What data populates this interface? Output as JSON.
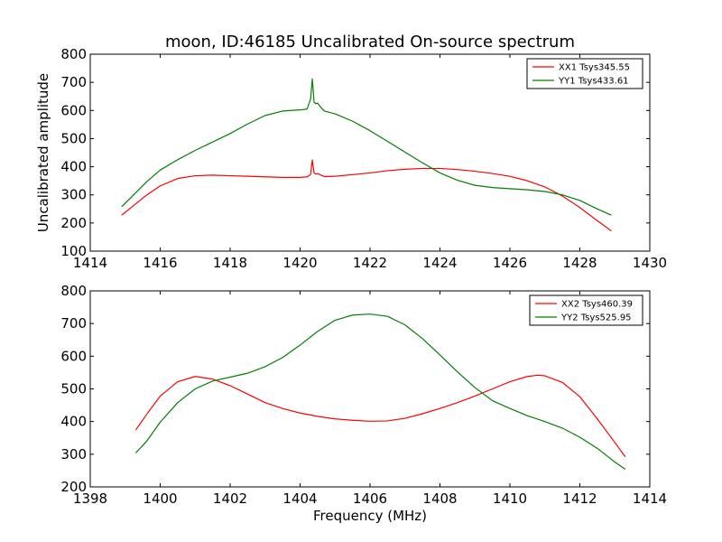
{
  "figure": {
    "title": "moon, ID:46185 Uncalibrated On-source spectrum",
    "ylabel": "Uncalibrated amplitude",
    "xlabel": "Frequency (MHz)"
  },
  "chart_data": [
    {
      "type": "line",
      "title": "moon, ID:46185 Uncalibrated On-source spectrum",
      "xlabel": "",
      "ylabel": "Uncalibrated amplitude",
      "xlim": [
        1414,
        1430
      ],
      "ylim": [
        100,
        800
      ],
      "xticks": [
        1414,
        1416,
        1418,
        1420,
        1422,
        1424,
        1426,
        1428,
        1430
      ],
      "yticks": [
        100,
        200,
        300,
        400,
        500,
        600,
        700,
        800
      ],
      "grid": false,
      "legend": "top-right",
      "series": [
        {
          "name": "XX1 Tsys345.55",
          "color": "#ff0000",
          "x": [
            1414.9,
            1415.2,
            1415.6,
            1416.0,
            1416.5,
            1417.0,
            1417.5,
            1418.0,
            1418.5,
            1419.0,
            1419.5,
            1420.0,
            1420.2,
            1420.3,
            1420.35,
            1420.4,
            1420.45,
            1420.5,
            1420.6,
            1420.7,
            1421.0,
            1421.5,
            1422.0,
            1422.5,
            1423.0,
            1423.5,
            1424.0,
            1424.5,
            1425.0,
            1425.5,
            1426.0,
            1426.5,
            1427.0,
            1427.5,
            1428.0,
            1428.5,
            1428.9
          ],
          "y": [
            228,
            258,
            298,
            332,
            358,
            368,
            370,
            368,
            366,
            364,
            362,
            362,
            364,
            372,
            424,
            378,
            374,
            376,
            370,
            365,
            366,
            372,
            378,
            386,
            391,
            394,
            394,
            390,
            384,
            376,
            366,
            350,
            328,
            296,
            255,
            208,
            172
          ]
        },
        {
          "name": "YY1 Tsys433.61",
          "color": "#008000",
          "x": [
            1414.9,
            1415.2,
            1415.6,
            1416.0,
            1416.5,
            1417.0,
            1417.5,
            1418.0,
            1418.5,
            1419.0,
            1419.5,
            1420.0,
            1420.2,
            1420.3,
            1420.35,
            1420.4,
            1420.45,
            1420.5,
            1420.6,
            1420.7,
            1421.0,
            1421.5,
            1422.0,
            1422.5,
            1423.0,
            1423.5,
            1424.0,
            1424.5,
            1425.0,
            1425.5,
            1426.0,
            1426.5,
            1427.0,
            1427.5,
            1428.0,
            1428.5,
            1428.9
          ],
          "y": [
            258,
            295,
            345,
            388,
            425,
            458,
            488,
            518,
            552,
            582,
            598,
            602,
            605,
            640,
            712,
            630,
            624,
            626,
            610,
            598,
            588,
            562,
            528,
            490,
            452,
            414,
            378,
            352,
            334,
            326,
            322,
            318,
            312,
            300,
            280,
            250,
            228
          ]
        }
      ]
    },
    {
      "type": "line",
      "title": "",
      "xlabel": "Frequency (MHz)",
      "ylabel": "",
      "xlim": [
        1398,
        1414
      ],
      "ylim": [
        200,
        800
      ],
      "xticks": [
        1398,
        1400,
        1402,
        1404,
        1406,
        1408,
        1410,
        1412,
        1414
      ],
      "yticks": [
        200,
        300,
        400,
        500,
        600,
        700,
        800
      ],
      "grid": false,
      "legend": "top-right",
      "series": [
        {
          "name": "XX2 Tsys460.39",
          "color": "#ff0000",
          "x": [
            1399.3,
            1399.6,
            1400.0,
            1400.5,
            1401.0,
            1401.5,
            1402.0,
            1402.5,
            1403.0,
            1403.5,
            1404.0,
            1404.5,
            1405.0,
            1405.5,
            1406.0,
            1406.5,
            1407.0,
            1407.5,
            1408.0,
            1408.5,
            1409.0,
            1409.5,
            1410.0,
            1410.5,
            1410.8,
            1411.0,
            1411.5,
            1412.0,
            1412.5,
            1413.0,
            1413.3
          ],
          "y": [
            374,
            420,
            478,
            522,
            538,
            530,
            510,
            484,
            458,
            440,
            426,
            416,
            408,
            404,
            401,
            402,
            410,
            424,
            440,
            458,
            478,
            500,
            522,
            538,
            542,
            540,
            520,
            476,
            408,
            336,
            292
          ]
        },
        {
          "name": "YY2 Tsys525.95",
          "color": "#008000",
          "x": [
            1399.3,
            1399.6,
            1400.0,
            1400.5,
            1401.0,
            1401.5,
            1402.0,
            1402.5,
            1403.0,
            1403.5,
            1404.0,
            1404.5,
            1405.0,
            1405.5,
            1406.0,
            1406.5,
            1407.0,
            1407.5,
            1408.0,
            1408.5,
            1409.0,
            1409.5,
            1410.0,
            1410.5,
            1411.0,
            1411.5,
            1412.0,
            1412.5,
            1413.0,
            1413.3
          ],
          "y": [
            304,
            338,
            398,
            458,
            500,
            524,
            536,
            548,
            568,
            596,
            634,
            676,
            710,
            726,
            729,
            722,
            696,
            654,
            604,
            552,
            504,
            464,
            440,
            418,
            400,
            380,
            352,
            318,
            276,
            254
          ]
        }
      ]
    }
  ]
}
